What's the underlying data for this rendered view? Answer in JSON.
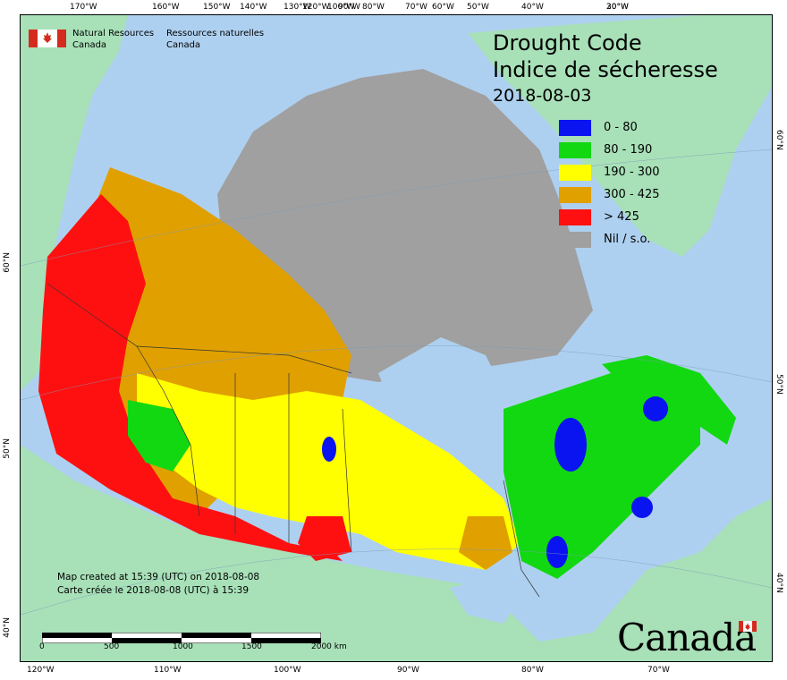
{
  "agency": {
    "en_line1": "Natural Resources",
    "en_line2": "Canada",
    "fr_line1": "Ressources naturelles",
    "fr_line2": "Canada"
  },
  "title": {
    "line1": "Drought Code",
    "line2": "Indice de sécheresse",
    "date": "2018-08-03"
  },
  "legend": [
    {
      "label": "0 - 80",
      "color": "#0a14f0"
    },
    {
      "label": "80 - 190",
      "color": "#12d812"
    },
    {
      "label": "190 - 300",
      "color": "#ffff00"
    },
    {
      "label": "300 - 425",
      "color": "#e0a000"
    },
    {
      "label": "> 425",
      "color": "#ff1010"
    },
    {
      "label": "Nil / s.o.",
      "color": "#a0a0a0"
    }
  ],
  "footnote": {
    "line1": "Map created at 15:39 (UTC) on 2018-08-08",
    "line2": "Carte créée le 2018-08-08 (UTC) à 15:39"
  },
  "scale_bar": {
    "labels": [
      "0",
      "500",
      "1000",
      "1500",
      "2000 km"
    ]
  },
  "graticule": {
    "top": [
      "170°W",
      "160°W",
      "150°W",
      "140°W",
      "130°W",
      "120°W",
      "100°W",
      "90°W",
      "80°W",
      "70°W",
      "60°W",
      "50°W",
      "40°W",
      "30°W",
      "20°W"
    ],
    "bottom": [
      "120°W",
      "110°W",
      "100°W",
      "90°W",
      "80°W",
      "70°W"
    ],
    "left": [
      "60°N",
      "50°N",
      "40°N"
    ],
    "right": [
      "60°N",
      "50°N",
      "40°N"
    ]
  },
  "wordmark": "Canada",
  "colors": {
    "ocean": "#aed0f0",
    "land_other": "#a8e0b8",
    "nil": "#a0a0a0"
  }
}
